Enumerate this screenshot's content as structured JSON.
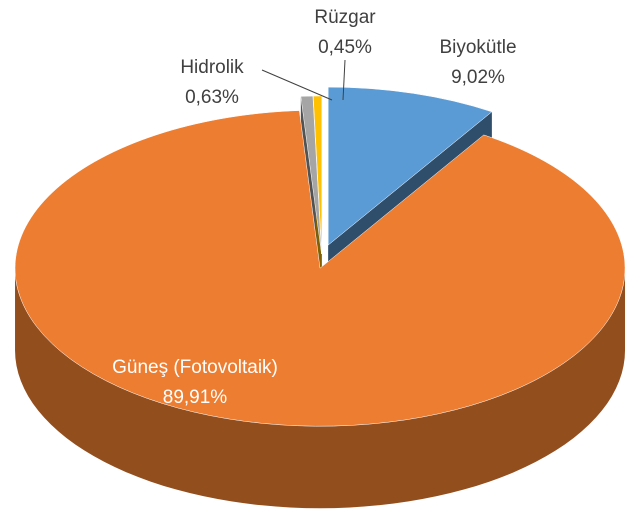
{
  "chart_data": {
    "type": "pie",
    "categories": [
      "Biyokütle",
      "Güneş (Fotovoltaik)",
      "Hidrolik",
      "Rüzgar"
    ],
    "values": [
      9.02,
      89.91,
      0.63,
      0.45
    ],
    "value_labels": [
      "9,02%",
      "89,91%",
      "0,63%",
      "0,45%"
    ],
    "colors": [
      "#5b9bd5",
      "#ed7d31",
      "#a5a5a5",
      "#ffc000"
    ]
  }
}
